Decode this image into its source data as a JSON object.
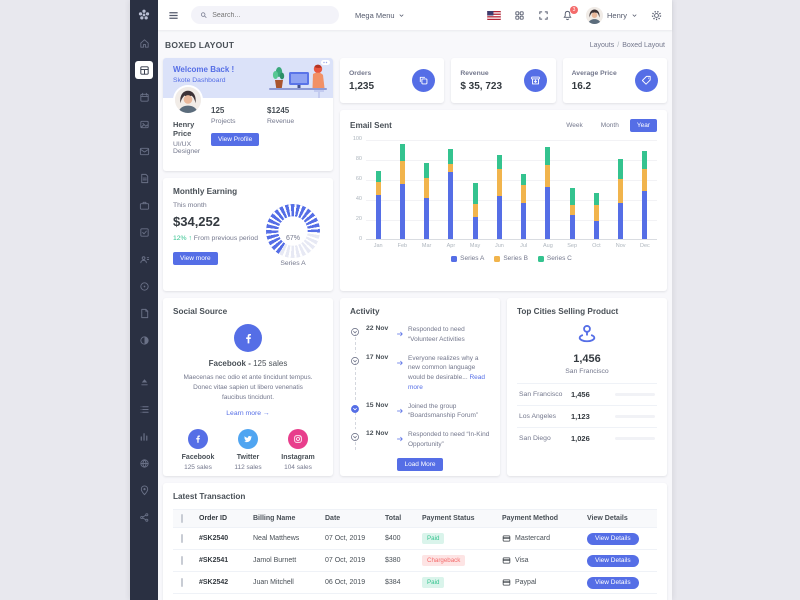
{
  "topbar": {
    "search_placeholder": "Search...",
    "mega_menu_label": "Mega Menu",
    "notification_count": "3",
    "user_name": "Henry",
    "icons": [
      "menu-icon",
      "search-icon",
      "us-flag-icon",
      "apps-grid-icon",
      "fullscreen-icon",
      "bell-icon",
      "gear-icon",
      "chevron-down-icon"
    ]
  },
  "sidebar": {
    "logo_icon": "skote-logo-icon",
    "items": [
      {
        "name": "home-icon",
        "active": false
      },
      {
        "name": "dashboard-icon",
        "active": true
      },
      {
        "name": "calendar-icon",
        "active": false
      },
      {
        "name": "gallery-icon",
        "active": false
      },
      {
        "name": "email-icon",
        "active": false
      },
      {
        "name": "invoice-icon",
        "active": false
      },
      {
        "name": "briefcase-icon",
        "active": false
      },
      {
        "name": "tasks-icon",
        "active": false
      },
      {
        "name": "contacts-icon",
        "active": false
      },
      {
        "name": "disc-icon",
        "active": false
      },
      {
        "name": "document-icon",
        "active": false
      },
      {
        "name": "theme-icon",
        "active": false
      },
      {
        "name": "upload-icon",
        "active": false
      },
      {
        "name": "list-icon",
        "active": false
      },
      {
        "name": "bar-chart-icon",
        "active": false
      },
      {
        "name": "globe-icon",
        "active": false
      },
      {
        "name": "map-pin-icon",
        "active": false
      },
      {
        "name": "share-icon",
        "active": false
      }
    ]
  },
  "page": {
    "title": "BOXED LAYOUT",
    "breadcrumb_parent": "Layouts",
    "breadcrumb_sep": "/",
    "breadcrumb_current": "Boxed Layout"
  },
  "welcome": {
    "title": "Welcome Back !",
    "subtitle": "Skote Dashboard",
    "user_name": "Henry Price",
    "user_role": "UI/UX Designer",
    "stats": [
      {
        "value": "125",
        "label": "Projects"
      },
      {
        "value": "$1245",
        "label": "Revenue"
      }
    ],
    "button_label": "View Profile"
  },
  "stat_cards": [
    {
      "label": "Orders",
      "value": "1,235",
      "icon": "copy-icon"
    },
    {
      "label": "Revenue",
      "value": "$ 35, 723",
      "icon": "archive-in-icon"
    },
    {
      "label": "Average Price",
      "value": "16.2",
      "icon": "purchase-tag-icon"
    }
  ],
  "monthly_earning": {
    "title": "Monthly Earning",
    "period": "This month",
    "amount": "$34,252",
    "delta": "12%",
    "delta_arrow": "up-arrow-icon",
    "delta_note": "From previous period",
    "button_label": "View more",
    "gauge_value": "67%",
    "gauge_label": "Series A",
    "gauge_color": "#556ee6"
  },
  "chart_data": {
    "type": "bar",
    "stacked": true,
    "title": "Email Sent",
    "toolbar": [
      "Week",
      "Month",
      "Year"
    ],
    "toolbar_active": "Year",
    "categories": [
      "Jan",
      "Feb",
      "Mar",
      "Apr",
      "May",
      "Jun",
      "Jul",
      "Aug",
      "Sep",
      "Oct",
      "Nov",
      "Dec"
    ],
    "series": [
      {
        "name": "Series A",
        "color": "#556ee6",
        "values": [
          44,
          55,
          41,
          67,
          22,
          43,
          36,
          52,
          24,
          18,
          36,
          48
        ]
      },
      {
        "name": "Series B",
        "color": "#f1b44c",
        "values": [
          13,
          23,
          20,
          8,
          13,
          27,
          18,
          22,
          10,
          16,
          24,
          22
        ]
      },
      {
        "name": "Series C",
        "color": "#34c38f",
        "values": [
          11,
          17,
          15,
          15,
          21,
          14,
          11,
          18,
          17,
          12,
          20,
          18
        ]
      }
    ],
    "ylim": [
      0,
      100
    ],
    "yticks": [
      100,
      80,
      60,
      40,
      20,
      0
    ],
    "grid": true,
    "legend_position": "bottom"
  },
  "social": {
    "title": "Social Source",
    "highlight_icon": "facebook-icon",
    "highlight_name": "Facebook -",
    "highlight_sales": "125 sales",
    "description": "Maecenas nec odio et ante tincidunt tempus. Donec vitae sapien ut libero venenatis faucibus tincidunt.",
    "link_label": "Learn more",
    "items": [
      {
        "name": "Facebook",
        "sales": "125 sales",
        "icon": "facebook-icon",
        "color": "#556ee6"
      },
      {
        "name": "Twitter",
        "sales": "112 sales",
        "icon": "twitter-icon",
        "color": "#50a5f1"
      },
      {
        "name": "Instagram",
        "sales": "104 sales",
        "icon": "instagram-icon",
        "color": "#e83e8c"
      }
    ]
  },
  "activity": {
    "title": "Activity",
    "items": [
      {
        "date": "22 Nov",
        "text": "Responded to need “Volunteer Activities",
        "link": "",
        "active": false
      },
      {
        "date": "17 Nov",
        "text": "Everyone realizes why a new common language would be desirable... ",
        "link": "Read more",
        "active": false
      },
      {
        "date": "15 Nov",
        "text": "Joined the group “Boardsmanship Forum”",
        "link": "",
        "active": true
      },
      {
        "date": "12 Nov",
        "text": "Responded to need “In-Kind Opportunity”",
        "link": "",
        "active": false
      }
    ],
    "button_label": "Load More"
  },
  "top_cities": {
    "title": "Top Cities Selling Product",
    "icon": "map-pin-icon",
    "value": "1,456",
    "city": "San Francisco",
    "rows": [
      {
        "city": "San Francisco",
        "value": "1,456",
        "color": "#556ee6",
        "pct": 94
      },
      {
        "city": "Los Angeles",
        "value": "1,123",
        "color": "#34c38f",
        "pct": 82
      },
      {
        "city": "San Diego",
        "value": "1,026",
        "color": "#f1b44c",
        "pct": 70
      }
    ]
  },
  "transactions": {
    "title": "Latest Transaction",
    "headers": [
      "Order ID",
      "Billing Name",
      "Date",
      "Total",
      "Payment Status",
      "Payment Method",
      "View Details"
    ],
    "rows": [
      {
        "id": "#SK2540",
        "name": "Neal Matthews",
        "date": "07 Oct, 2019",
        "total": "$400",
        "status": "Paid",
        "status_type": "success",
        "method": "Mastercard",
        "method_icon": "credit-card-icon",
        "action": "View Details"
      },
      {
        "id": "#SK2541",
        "name": "Jamol Burnett",
        "date": "07 Oct, 2019",
        "total": "$380",
        "status": "Chargeback",
        "status_type": "danger",
        "method": "Visa",
        "method_icon": "credit-card-icon",
        "action": "View Details"
      },
      {
        "id": "#SK2542",
        "name": "Juan Mitchell",
        "date": "06 Oct, 2019",
        "total": "$384",
        "status": "Paid",
        "status_type": "success",
        "method": "Paypal",
        "method_icon": "credit-card-icon",
        "action": "View Details"
      }
    ]
  },
  "colors": {
    "primary": "#556ee6",
    "success": "#34c38f",
    "warning": "#f1b44c",
    "danger": "#f46a6a",
    "info": "#50a5f1",
    "pink": "#e83e8c",
    "sidebar_bg": "#2a3042",
    "content_bg": "#f8f8fb",
    "outer_bg": "#e8e8ee"
  }
}
